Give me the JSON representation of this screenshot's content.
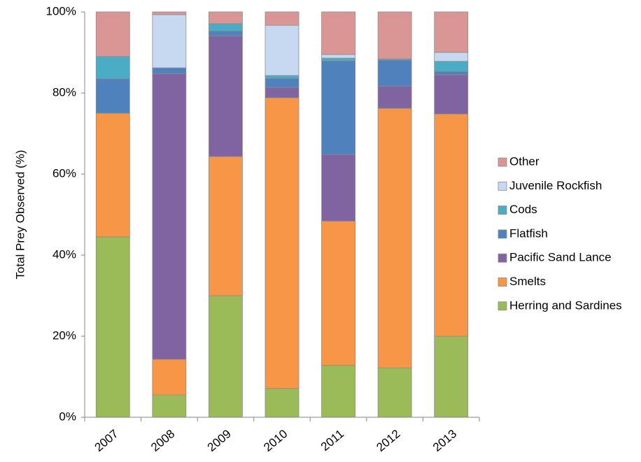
{
  "chart_data": {
    "type": "stacked_bar_100",
    "y_label": "Total Prey Observed (%)",
    "categories": [
      "2007",
      "2008",
      "2009",
      "2010",
      "2011",
      "2012",
      "2013"
    ],
    "series": [
      {
        "name": "Herring and Sardines",
        "color": "#9bbb59",
        "values": [
          44.5,
          5.5,
          30,
          7.1,
          12.8,
          12.2,
          20
        ]
      },
      {
        "name": "Smelts",
        "color": "#f79646",
        "values": [
          30.5,
          8.8,
          34.3,
          71.7,
          35.6,
          64,
          54.8
        ]
      },
      {
        "name": "Pacific Sand Lance",
        "color": "#8064a2",
        "values": [
          0,
          70.5,
          29.8,
          2.6,
          16.4,
          5.5,
          9.7
        ]
      },
      {
        "name": "Flatfish",
        "color": "#4f81bd",
        "values": [
          8.5,
          1.4,
          1.2,
          2.2,
          23.1,
          6.4,
          0.8
        ]
      },
      {
        "name": "Cods",
        "color": "#4bacc6",
        "values": [
          5.5,
          0,
          1.8,
          0.7,
          0.7,
          0.3,
          2.5
        ]
      },
      {
        "name": "Juvenile Rockfish",
        "color": "#c6d9f1",
        "values": [
          0,
          13.1,
          0,
          12.4,
          0.9,
          0,
          2.2
        ]
      },
      {
        "name": "Other",
        "color": "#d99694",
        "values": [
          11,
          0.7,
          2.9,
          3.3,
          10.5,
          11.6,
          10
        ]
      }
    ],
    "ylim": [
      0,
      100
    ],
    "yticks": [
      {
        "value": 0,
        "label": "0%"
      },
      {
        "value": 20,
        "label": "20%"
      },
      {
        "value": 40,
        "label": "40%"
      },
      {
        "value": 60,
        "label": "60%"
      },
      {
        "value": 80,
        "label": "80%"
      },
      {
        "value": 100,
        "label": "100%"
      }
    ],
    "legend": "right",
    "grid": false
  }
}
